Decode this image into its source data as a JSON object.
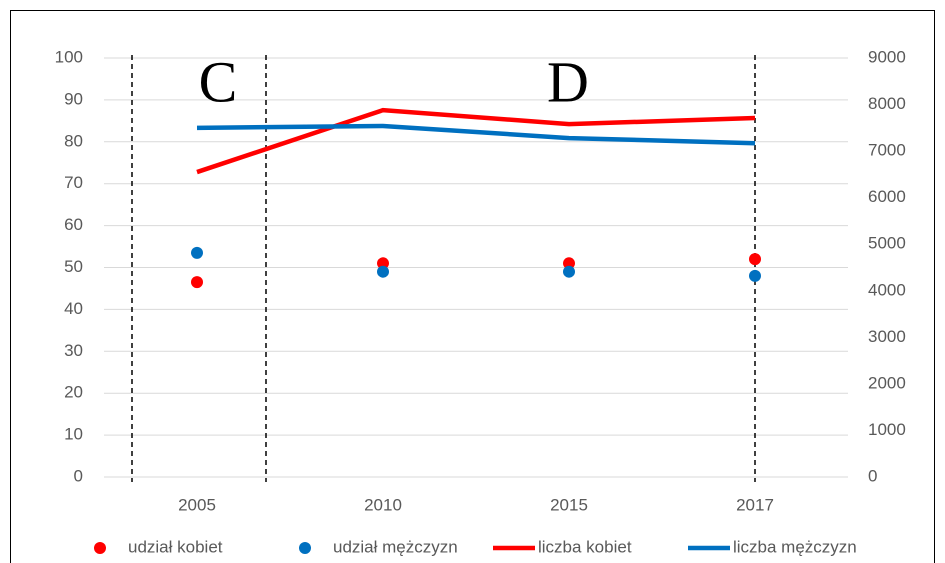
{
  "chart_data": {
    "type": "line",
    "categories": [
      "2005",
      "2010",
      "2015",
      "2017"
    ],
    "ylim": [
      0,
      100
    ],
    "yticks": [
      0,
      10,
      20,
      30,
      40,
      50,
      60,
      70,
      80,
      90,
      100
    ],
    "y2lim": [
      0,
      9000
    ],
    "y2ticks": [
      0,
      1000,
      2000,
      3000,
      4000,
      5000,
      6000,
      7000,
      8000,
      9000
    ],
    "grid": true,
    "legend": "bottom",
    "annotations": [
      "C",
      "D"
    ],
    "series": [
      {
        "name": "udział kobiet",
        "color": "#ff0000",
        "mark": "dot",
        "values": [
          46.5,
          51,
          51,
          52
        ]
      },
      {
        "name": "udział mężczyzn",
        "color": "#0070c0",
        "mark": "dot",
        "values": [
          53.5,
          49,
          49,
          48
        ]
      },
      {
        "name": "liczba kobiet",
        "color": "#ff0000",
        "mark": "line",
        "axis": "y2",
        "values": [
          6550,
          7880,
          7580,
          7710
        ]
      },
      {
        "name": "liczba mężczyzn",
        "color": "#0070c0",
        "mark": "line",
        "axis": "y2",
        "values": [
          7500,
          7540,
          7280,
          7170
        ]
      }
    ]
  }
}
